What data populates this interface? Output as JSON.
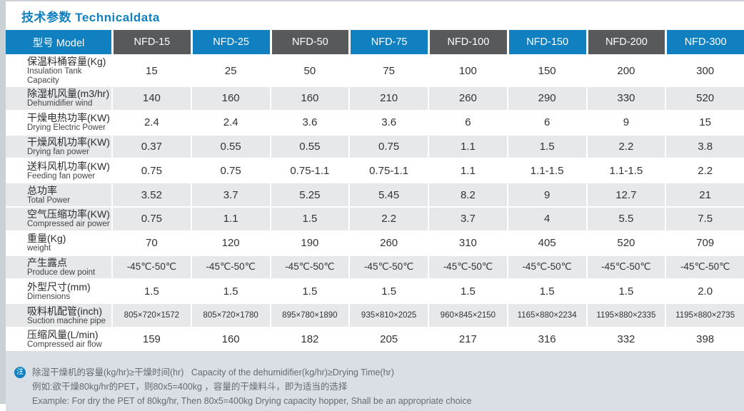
{
  "title": "技术参数 Technicaldata",
  "table": {
    "model_header": "型号 Model",
    "models": [
      "NFD-15",
      "NFD-25",
      "NFD-50",
      "NFD-75",
      "NFD-100",
      "NFD-150",
      "NFD-200",
      "NFD-300"
    ],
    "rows": [
      {
        "label_cn": "保温料桶容量(Kg)",
        "label_en": "Insulation Tank Capacity",
        "shade": false,
        "size": "normal",
        "values": [
          "15",
          "25",
          "50",
          "75",
          "100",
          "150",
          "200",
          "300"
        ]
      },
      {
        "label_cn": "除湿机风量(m3/hr)",
        "label_en": "Dehumidifier wind",
        "shade": true,
        "size": "normal",
        "values": [
          "140",
          "160",
          "160",
          "210",
          "260",
          "290",
          "330",
          "520"
        ]
      },
      {
        "label_cn": "干燥电热功率(KW)",
        "label_en": "Drying Electric Power",
        "shade": false,
        "size": "normal",
        "values": [
          "2.4",
          "2.4",
          "3.6",
          "3.6",
          "6",
          "6",
          "9",
          "15"
        ]
      },
      {
        "label_cn": "干燥风机功率(KW)",
        "label_en": "Drying fan power",
        "shade": true,
        "size": "normal",
        "values": [
          "0.37",
          "0.55",
          "0.55",
          "0.75",
          "1.1",
          "1.5",
          "2.2",
          "3.8"
        ]
      },
      {
        "label_cn": "送料风机功率(KW)",
        "label_en": "Feeding fan power",
        "shade": false,
        "size": "normal",
        "values": [
          "0.75",
          "0.75",
          "0.75-1.1",
          "0.75-1.1",
          "1.1",
          "1.1-1.5",
          "1.1-1.5",
          "2.2"
        ]
      },
      {
        "label_cn": "总功率",
        "label_en": "Total Power",
        "shade": true,
        "size": "normal",
        "values": [
          "3.52",
          "3.7",
          "5.25",
          "5.45",
          "8.2",
          "9",
          "12.7",
          "21"
        ]
      },
      {
        "label_cn": "空气压缩功率(KW)",
        "label_en": "Compressed air power",
        "shade": true,
        "size": "normal",
        "values": [
          "0.75",
          "1.1",
          "1.5",
          "2.2",
          "3.7",
          "4",
          "5.5",
          "7.5"
        ]
      },
      {
        "label_cn": "重量(Kg)",
        "label_en": "weight",
        "shade": false,
        "size": "normal",
        "values": [
          "70",
          "120",
          "190",
          "260",
          "310",
          "405",
          "520",
          "709"
        ]
      },
      {
        "label_cn": "产生露点",
        "label_en": "Produce dew point",
        "shade": true,
        "size": "mid",
        "values": [
          "-45℃-50℃",
          "-45℃-50℃",
          "-45℃-50℃",
          "-45℃-50℃",
          "-45℃-50℃",
          "-45℃-50℃",
          "-45℃-50℃",
          "-45℃-50℃"
        ]
      },
      {
        "label_cn": "外型尺寸(mm)",
        "label_en": "Dimensions",
        "shade": false,
        "size": "normal",
        "values": [
          "1.5",
          "1.5",
          "1.5",
          "1.5",
          "1.5",
          "1.5",
          "1.5",
          "2.0"
        ]
      },
      {
        "label_cn": "吸料机配管(inch)",
        "label_en": "Suction machine pipe",
        "shade": true,
        "size": "small",
        "values": [
          "805×720×1572",
          "805×720×1780",
          "895×780×1890",
          "935×810×2025",
          "960×845×2150",
          "1165×880×2234",
          "1195×880×2335",
          "1195×880×2735"
        ]
      },
      {
        "label_cn": "压缩风量(L/min)",
        "label_en": "Compressed air flow",
        "shade": false,
        "size": "normal",
        "values": [
          "159",
          "160",
          "182",
          "205",
          "217",
          "316",
          "332",
          "398"
        ]
      }
    ]
  },
  "footer": {
    "note_icon": "注",
    "line1": "除湿干燥机的容量(kg/hr)≥干燥时间(hr)   Capacity of the dehumidifier(kg/hr)≥Drying Time(hr)",
    "line2": "例如:欲干燥80kg/hr的PET，则80x5=400kg ，容量的干燥料斗，即为适当的选择",
    "line3": "Example: For dry the PET of 80kg/hr, Then 80x5=400kg Drying capacity hopper, Shall be an appropriate choice"
  },
  "colors": {
    "accent_blue": "#1080c0",
    "header_dark_gray": "#58595b",
    "row_shade_gray": "#e7e8ea",
    "footer_background": "#d9dfe4",
    "left_strip_gray": "#cad0d4"
  }
}
